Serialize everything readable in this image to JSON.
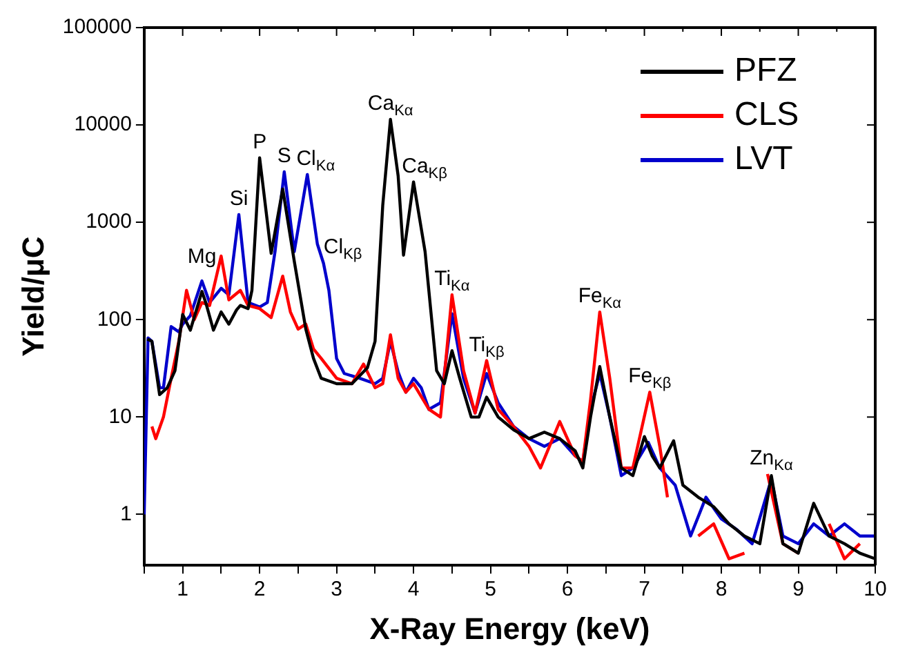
{
  "chart_data": {
    "type": "line",
    "xlabel": "X-Ray Energy (keV)",
    "ylabel": "Yield/μC",
    "log": "y",
    "grid": false,
    "legend": "top right",
    "marker": "none",
    "line_style": "solid",
    "xlim": [
      0.5,
      10
    ],
    "xticks": [
      {
        "value": 0.5,
        "label": null
      },
      1,
      {
        "value": 1.5,
        "label": null
      },
      2,
      {
        "value": 2.5,
        "label": null
      },
      3,
      {
        "value": 3.5,
        "label": null
      },
      4,
      {
        "value": 4.5,
        "label": null
      },
      5,
      {
        "value": 5.5,
        "label": null
      },
      6,
      {
        "value": 6.5,
        "label": null
      },
      7,
      {
        "value": 7.5,
        "label": null
      },
      8,
      {
        "value": 8.5,
        "label": null
      },
      9,
      {
        "value": 9.5,
        "label": null
      },
      10
    ],
    "ylim": [
      0.3,
      100000
    ],
    "yticks": [
      1,
      10,
      100,
      1000,
      10000,
      100000
    ],
    "series": [
      {
        "name": "PFZ",
        "color": "#000000",
        "x": [
          0.54,
          0.6,
          0.7,
          0.8,
          0.9,
          1.0,
          1.1,
          1.25,
          1.3,
          1.4,
          1.5,
          1.6,
          1.7,
          1.75,
          1.85,
          1.9,
          2.0,
          2.15,
          2.3,
          2.45,
          2.6,
          2.7,
          2.8,
          3.0,
          3.2,
          3.4,
          3.5,
          3.6,
          3.7,
          3.8,
          3.87,
          4.0,
          4.15,
          4.3,
          4.4,
          4.5,
          4.6,
          4.75,
          4.85,
          4.95,
          5.1,
          5.3,
          5.5,
          5.7,
          5.9,
          6.1,
          6.2,
          6.3,
          6.42,
          6.55,
          6.7,
          6.85,
          7.0,
          7.1,
          7.2,
          7.38,
          7.5,
          7.7,
          7.9,
          8.1,
          8.3,
          8.5,
          8.65,
          8.8,
          9.0,
          9.2,
          9.4,
          9.6,
          9.8,
          10
        ],
        "values": [
          63,
          60,
          17,
          20,
          30,
          113,
          78,
          195,
          150,
          78,
          120,
          90,
          126,
          140,
          130,
          200,
          4600,
          480,
          2200,
          400,
          80,
          40,
          25,
          22,
          22,
          32,
          60,
          1500,
          11400,
          3000,
          460,
          2600,
          500,
          30,
          22,
          48,
          25,
          10,
          10,
          16,
          10,
          7.4,
          6,
          7,
          6,
          4.5,
          3,
          10,
          33,
          10,
          3,
          2.5,
          6.3,
          4,
          3,
          5.7,
          2,
          1.5,
          1.2,
          0.8,
          0.6,
          0.5,
          2.5,
          0.5,
          0.4,
          1.3,
          0.6,
          0.5,
          0.4,
          0.35
        ]
      },
      {
        "name": "CLS",
        "color": "#ff0000",
        "x": [
          0.6,
          0.65,
          0.75,
          0.85,
          0.95,
          1.05,
          1.15,
          1.25,
          1.35,
          1.5,
          1.6,
          1.75,
          1.85,
          2.0,
          2.15,
          2.3,
          2.4,
          2.5,
          2.6,
          2.7,
          2.8,
          3.0,
          3.2,
          3.35,
          3.5,
          3.6,
          3.7,
          3.8,
          3.9,
          4.0,
          4.2,
          4.35,
          4.5,
          4.65,
          4.8,
          4.95,
          5.1,
          5.3,
          5.5,
          5.65,
          5.9,
          6.1,
          6.2,
          6.3,
          6.42,
          6.55,
          6.7,
          6.85,
          7.07,
          7.2,
          7.3,
          7.5,
          7.7,
          7.9,
          8.1,
          8.3,
          8.45,
          8.6,
          8.8,
          9.0,
          9.2,
          9.4,
          9.6,
          9.8
        ],
        "values": [
          8,
          6,
          10,
          25,
          60,
          200,
          100,
          150,
          140,
          450,
          160,
          200,
          140,
          130,
          105,
          280,
          120,
          80,
          90,
          50,
          40,
          25,
          22,
          35,
          20,
          22,
          70,
          25,
          18,
          22,
          12,
          10,
          180,
          30,
          11,
          38,
          12,
          8,
          5,
          3,
          9,
          4,
          3.5,
          15,
          120,
          25,
          3,
          3,
          18,
          5,
          1.5,
          null,
          0.6,
          0.8,
          0.35,
          0.4,
          null,
          2.6,
          0.5,
          0.4,
          null,
          0.8,
          0.35,
          0.5
        ]
      },
      {
        "name": "LVT",
        "color": "#0000cc",
        "x": [
          0.5,
          0.55,
          0.6,
          0.7,
          0.75,
          0.85,
          0.95,
          1.0,
          1.1,
          1.25,
          1.35,
          1.5,
          1.6,
          1.73,
          1.85,
          2.0,
          2.1,
          2.2,
          2.32,
          2.45,
          2.62,
          2.75,
          2.83,
          2.9,
          3.0,
          3.1,
          3.3,
          3.5,
          3.6,
          3.7,
          3.8,
          3.9,
          4.0,
          4.1,
          4.2,
          4.35,
          4.5,
          4.65,
          4.8,
          4.95,
          5.1,
          5.3,
          5.5,
          5.7,
          5.9,
          6.1,
          6.2,
          6.3,
          6.42,
          6.55,
          6.7,
          6.85,
          7.05,
          7.2,
          7.4,
          7.6,
          7.8,
          8.0,
          8.2,
          8.4,
          8.65,
          8.8,
          9.0,
          9.2,
          9.4,
          9.6,
          9.8,
          10
        ],
        "values": [
          1,
          65,
          60,
          20,
          20,
          85,
          75,
          90,
          110,
          250,
          150,
          210,
          180,
          1200,
          150,
          135,
          150,
          500,
          3300,
          500,
          3100,
          600,
          380,
          200,
          40,
          28,
          25,
          22,
          25,
          60,
          29,
          18,
          25,
          20,
          12,
          14,
          115,
          25,
          11,
          28,
          14,
          8,
          6,
          5,
          6,
          4,
          3.5,
          12,
          28,
          10,
          2.5,
          3,
          5.5,
          3,
          2,
          0.6,
          1.5,
          0.9,
          0.7,
          0.5,
          2.3,
          0.6,
          0.5,
          0.8,
          0.6,
          0.8,
          0.6,
          0.6
        ]
      }
    ],
    "annotations": [
      {
        "text": "Mg",
        "x": 1.25,
        "y": 250
      },
      {
        "text": "Si",
        "x": 1.73,
        "y": 1200
      },
      {
        "text": "P",
        "x": 2.0,
        "y": 4600
      },
      {
        "text": "S",
        "x": 2.32,
        "y": 3300
      },
      {
        "text": "Cl$_{Kα}$",
        "x": 2.62,
        "y": 3100
      },
      {
        "text": "Cl$_{Kβ}$",
        "x": 2.83,
        "y": 380
      },
      {
        "text": "Ca$_{Kα}$",
        "x": 3.7,
        "y": 11400
      },
      {
        "text": "Ca$_{Kβ}$",
        "x": 4.0,
        "y": 2600
      },
      {
        "text": "Ti$_{Kα}$",
        "x": 4.5,
        "y": 180
      },
      {
        "text": "Ti$_{Kβ}$",
        "x": 4.95,
        "y": 38
      },
      {
        "text": "Fe$_{Kα}$",
        "x": 6.42,
        "y": 120
      },
      {
        "text": "Fe$_{Kβ}$",
        "x": 7.07,
        "y": 18
      },
      {
        "text": "Zn$_{Kα}$",
        "x": 8.65,
        "y": 2.6
      }
    ]
  }
}
